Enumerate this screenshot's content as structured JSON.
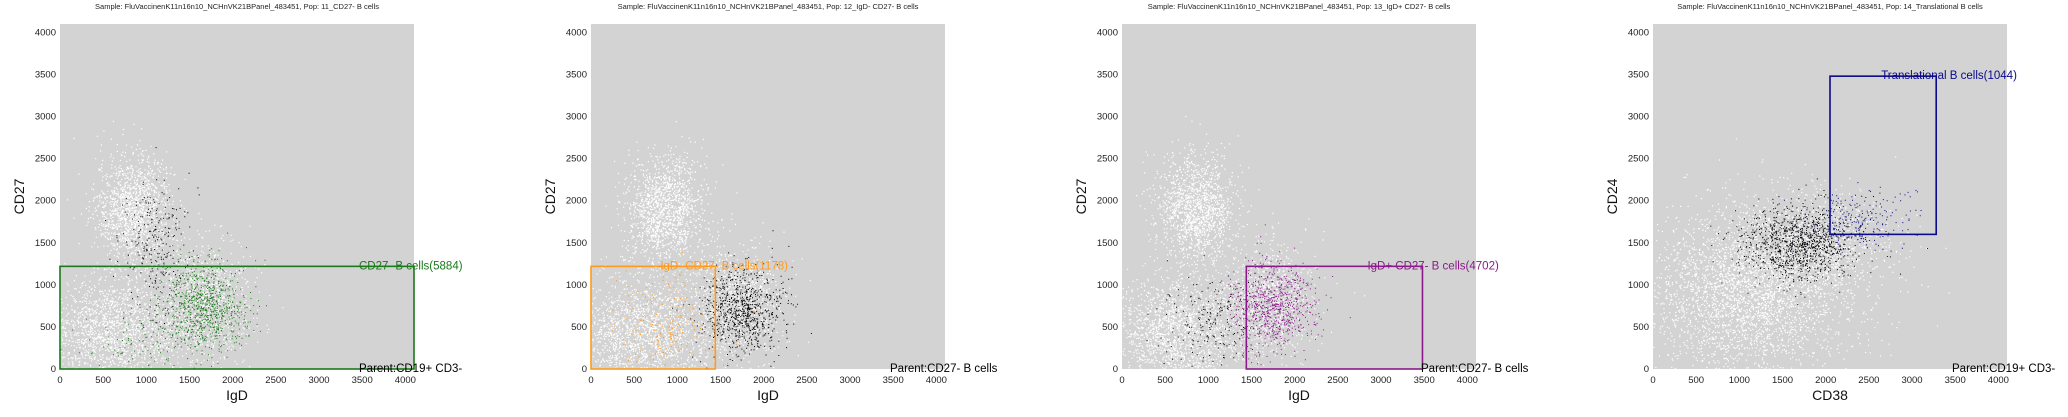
{
  "chart_data": [
    {
      "type": "scatter",
      "title": "Sample: FluVaccinenK11n16n10_NCHnVK21BPanel_483451, Pop: 11_CD27- B cells",
      "xlabel": "IgD",
      "ylabel": "CD27",
      "xlim": [
        0,
        4100
      ],
      "ylim": [
        0,
        4100
      ],
      "xticks": [
        "0",
        "500",
        "1000",
        "1500",
        "2000",
        "2500",
        "3000",
        "3500",
        "4000"
      ],
      "yticks": [
        "0",
        "500",
        "1000",
        "1500",
        "2000",
        "2500",
        "3000",
        "3500",
        "4000"
      ],
      "gate": {
        "label": "CD27- B cells(5884)",
        "color": "#1a7a1a",
        "x0": 0,
        "x1": 4100,
        "y0": 0,
        "y1": 1220
      },
      "parent_label": "Parent:CD19+ CD3-",
      "background_clusters": [
        {
          "cx": 850,
          "cy": 1900,
          "sx": 220,
          "sy": 320,
          "n": 1400
        },
        {
          "cx": 600,
          "cy": 450,
          "sx": 400,
          "sy": 320,
          "n": 1700
        },
        {
          "cx": 1650,
          "cy": 800,
          "sx": 280,
          "sy": 350,
          "n": 900
        }
      ],
      "foreground_clusters": [
        {
          "cx": 1100,
          "cy": 1500,
          "sx": 200,
          "sy": 400,
          "n": 260,
          "color": "#000000"
        },
        {
          "cx": 1650,
          "cy": 750,
          "sx": 250,
          "sy": 260,
          "n": 900,
          "color": "#1a7a1a"
        },
        {
          "cx": 1000,
          "cy": 300,
          "sx": 350,
          "sy": 200,
          "n": 120,
          "color": "#1a7a1a"
        }
      ]
    },
    {
      "type": "scatter",
      "title": "Sample: FluVaccinenK11n16n10_NCHnVK21BPanel_483451, Pop: 12_IgD- CD27- B cells",
      "xlabel": "IgD",
      "ylabel": "CD27",
      "xlim": [
        0,
        4100
      ],
      "ylim": [
        0,
        4100
      ],
      "xticks": [
        "0",
        "500",
        "1000",
        "1500",
        "2000",
        "2500",
        "3000",
        "3500",
        "4000"
      ],
      "yticks": [
        "0",
        "500",
        "1000",
        "1500",
        "2000",
        "2500",
        "3000",
        "3500",
        "4000"
      ],
      "gate": {
        "label": "IgD- CD27- B cells(1178)",
        "color": "#ff9a1f",
        "x0": 0,
        "x1": 1440,
        "y0": 0,
        "y1": 1220
      },
      "parent_label": "Parent:CD27- B cells",
      "background_clusters": [
        {
          "cx": 850,
          "cy": 1900,
          "sx": 220,
          "sy": 320,
          "n": 1400
        },
        {
          "cx": 600,
          "cy": 450,
          "sx": 400,
          "sy": 320,
          "n": 1700
        },
        {
          "cx": 1650,
          "cy": 800,
          "sx": 280,
          "sy": 350,
          "n": 900
        }
      ],
      "foreground_clusters": [
        {
          "cx": 1750,
          "cy": 700,
          "sx": 230,
          "sy": 260,
          "n": 800,
          "color": "#000000"
        },
        {
          "cx": 900,
          "cy": 500,
          "sx": 300,
          "sy": 300,
          "n": 260,
          "color": "#ff9a1f"
        }
      ]
    },
    {
      "type": "scatter",
      "title": "Sample: FluVaccinenK11n16n10_NCHnVK21BPanel_483451, Pop: 13_IgD+ CD27- B cells",
      "xlabel": "IgD",
      "ylabel": "CD27",
      "xlim": [
        0,
        4100
      ],
      "ylim": [
        0,
        4100
      ],
      "xticks": [
        "0",
        "500",
        "1000",
        "1500",
        "2000",
        "2500",
        "3000",
        "3500",
        "4000"
      ],
      "yticks": [
        "0",
        "500",
        "1000",
        "1500",
        "2000",
        "2500",
        "3000",
        "3500",
        "4000"
      ],
      "gate": {
        "label": "IgD+ CD27- B cells(4702)",
        "color": "#8a1a8a",
        "x0": 1440,
        "x1": 3480,
        "y0": 0,
        "y1": 1220
      },
      "parent_label": "Parent:CD27- B cells",
      "background_clusters": [
        {
          "cx": 850,
          "cy": 1900,
          "sx": 220,
          "sy": 320,
          "n": 1400
        },
        {
          "cx": 600,
          "cy": 450,
          "sx": 400,
          "sy": 320,
          "n": 1700
        },
        {
          "cx": 1650,
          "cy": 800,
          "sx": 280,
          "sy": 350,
          "n": 900
        }
      ],
      "foreground_clusters": [
        {
          "cx": 1050,
          "cy": 550,
          "sx": 300,
          "sy": 300,
          "n": 220,
          "color": "#000000"
        },
        {
          "cx": 1750,
          "cy": 750,
          "sx": 230,
          "sy": 260,
          "n": 800,
          "color": "#8a1a8a"
        }
      ]
    },
    {
      "type": "scatter",
      "title": "Sample: FluVaccinenK11n16n10_NCHnVK21BPanel_483451, Pop: 14_Translational B cells",
      "xlabel": "CD38",
      "ylabel": "CD24",
      "xlim": [
        0,
        4100
      ],
      "ylim": [
        0,
        4100
      ],
      "xticks": [
        "0",
        "500",
        "1000",
        "1500",
        "2000",
        "2500",
        "3000",
        "3500",
        "4000"
      ],
      "yticks": [
        "0",
        "500",
        "1000",
        "1500",
        "2000",
        "2500",
        "3000",
        "3500",
        "4000"
      ],
      "gate": {
        "label": "Translational B cells(1044)",
        "color": "#0a0a8a",
        "x0": 2050,
        "x1": 3280,
        "y0": 1600,
        "y1": 3480
      },
      "parent_label": "Parent:CD19+ CD3-",
      "background_clusters": [
        {
          "cx": 1100,
          "cy": 900,
          "sx": 600,
          "sy": 500,
          "n": 3200
        },
        {
          "cx": 1900,
          "cy": 1500,
          "sx": 450,
          "sy": 300,
          "n": 900
        }
      ],
      "foreground_clusters": [
        {
          "cx": 1700,
          "cy": 1500,
          "sx": 320,
          "sy": 230,
          "n": 1100,
          "color": "#000000"
        },
        {
          "cx": 2400,
          "cy": 1750,
          "sx": 300,
          "sy": 180,
          "n": 220,
          "color": "#0a0a8a"
        }
      ]
    }
  ],
  "colors": {
    "plot_background": "#d3d3d3",
    "background_points": "#ffffff"
  }
}
